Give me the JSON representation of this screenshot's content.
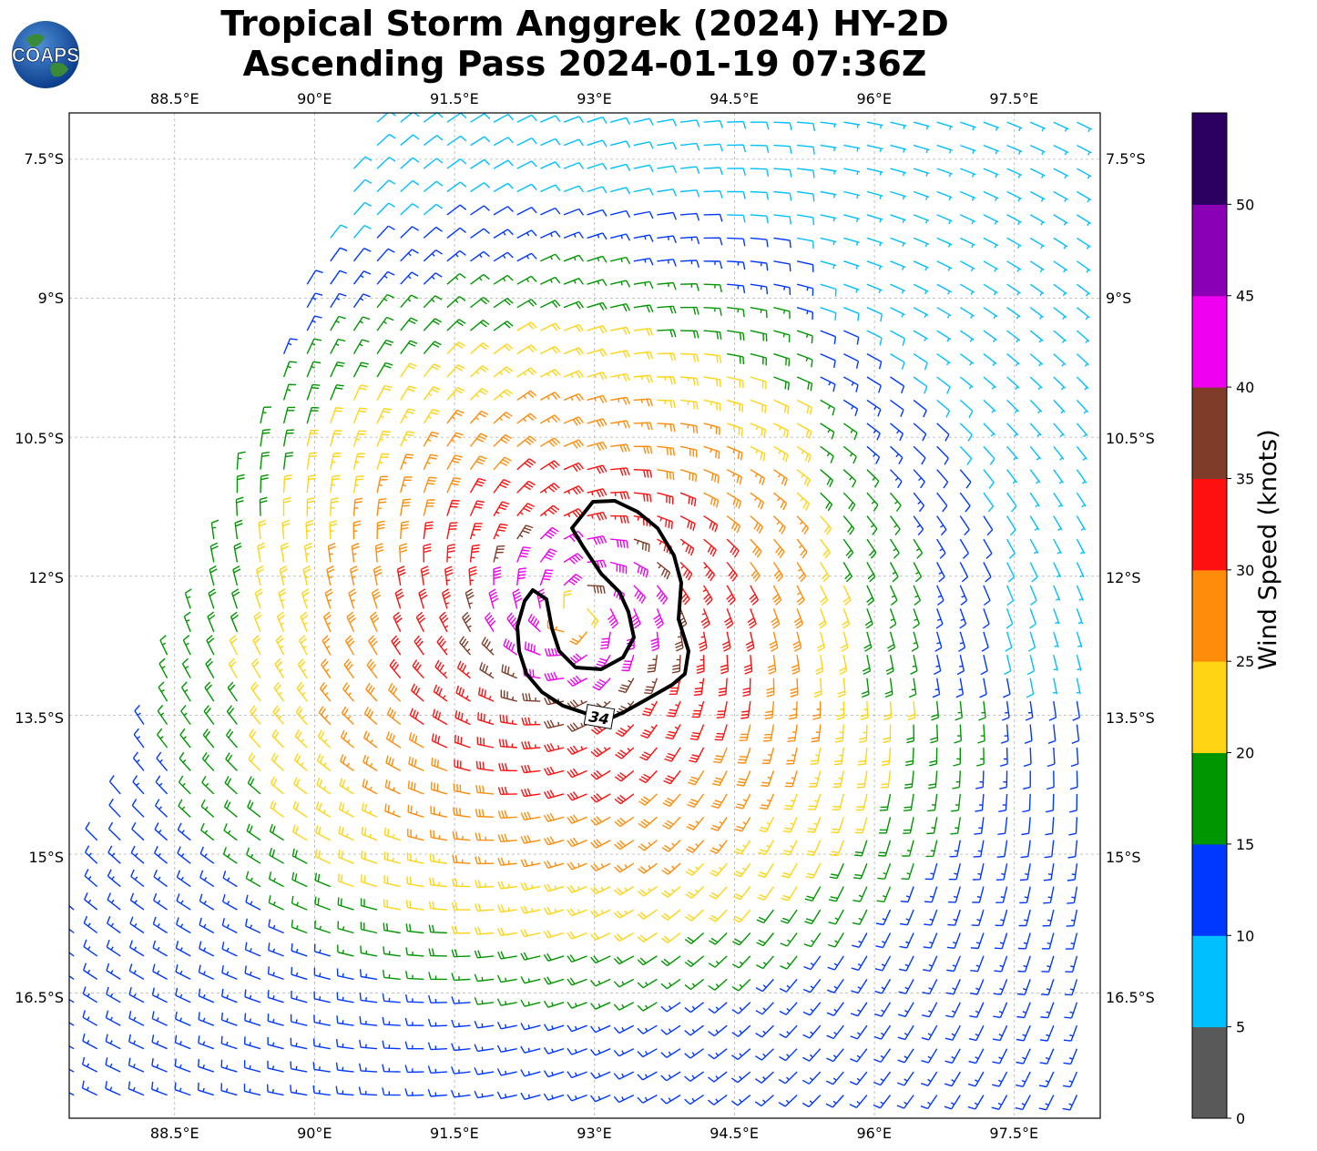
{
  "title": {
    "line1": "Tropical Storm Anggrek (2024) HY-2D",
    "line2": "Ascending Pass 2024-01-19 07:36Z"
  },
  "logo": {
    "text": "COAPS",
    "icon": "globe-icon"
  },
  "map": {
    "lon_range": [
      87.37,
      98.42
    ],
    "lat_range": [
      -17.85,
      -7.0
    ],
    "lon_ticks": [
      "88.5°E",
      "90°E",
      "91.5°E",
      "93°E",
      "94.5°E",
      "96°E",
      "97.5°E"
    ],
    "lat_ticks": [
      "7.5°S",
      "9°S",
      "10.5°S",
      "12°S",
      "13.5°S",
      "15°S",
      "16.5°S"
    ],
    "gridlines": true,
    "storm_center": {
      "lon": 92.8,
      "lat": -12.4
    },
    "contour_label": "34",
    "swath_edge": "west",
    "barb_units": "knots"
  },
  "colorbar": {
    "label": "Wind Speed (knots)",
    "ticks": [
      "0",
      "5",
      "10",
      "15",
      "20",
      "25",
      "30",
      "35",
      "40",
      "45",
      "50"
    ],
    "bins": [
      {
        "min": 0,
        "max": 5,
        "color": "#595959"
      },
      {
        "min": 5,
        "max": 10,
        "color": "#00bfff"
      },
      {
        "min": 10,
        "max": 15,
        "color": "#0038ff"
      },
      {
        "min": 15,
        "max": 20,
        "color": "#009600"
      },
      {
        "min": 20,
        "max": 25,
        "color": "#ffd414"
      },
      {
        "min": 25,
        "max": 30,
        "color": "#ff8c0a"
      },
      {
        "min": 30,
        "max": 35,
        "color": "#ff1010"
      },
      {
        "min": 35,
        "max": 40,
        "color": "#7f3c28"
      },
      {
        "min": 40,
        "max": 45,
        "color": "#f000f0"
      },
      {
        "min": 45,
        "max": 50,
        "color": "#8a00b4"
      },
      {
        "min": 50,
        "max": 55,
        "color": "#2c0060"
      }
    ]
  }
}
